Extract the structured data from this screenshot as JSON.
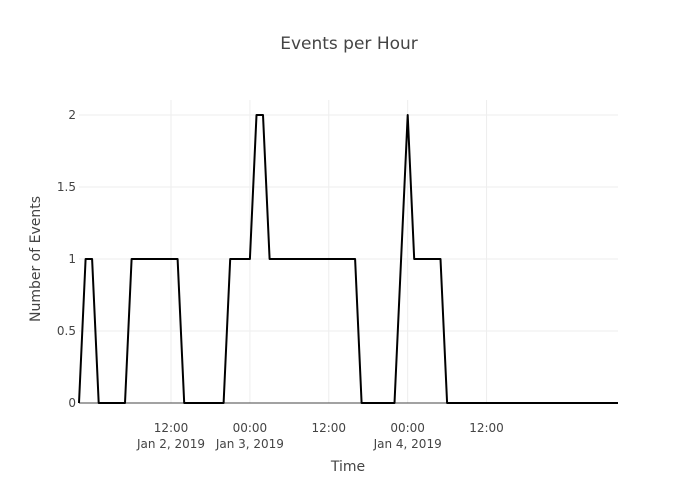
{
  "chart_data": {
    "type": "line",
    "title": "Events per Hour",
    "xlabel": "Time",
    "ylabel": "Number of Events",
    "xlim": [
      "2019-01-01 22:00",
      "2019-01-05 08:00"
    ],
    "ylim": [
      0,
      2
    ],
    "yticks": [
      0,
      0.5,
      1,
      1.5,
      2
    ],
    "ytick_labels": [
      "0",
      "0.5",
      "1",
      "1.5",
      "2"
    ],
    "xticks": [
      {
        "t": "2019-01-02 12:00",
        "label": "12:00",
        "sublabel": "Jan 2, 2019"
      },
      {
        "t": "2019-01-03 00:00",
        "label": "00:00",
        "sublabel": "Jan 3, 2019"
      },
      {
        "t": "2019-01-03 12:00",
        "label": "12:00",
        "sublabel": ""
      },
      {
        "t": "2019-01-04 00:00",
        "label": "00:00",
        "sublabel": "Jan 4, 2019"
      },
      {
        "t": "2019-01-04 12:00",
        "label": "12:00",
        "sublabel": ""
      }
    ],
    "grid": true,
    "line_color": "#000000",
    "series": [
      {
        "x": [
          "2019-01-01 22:00",
          "2019-01-01 23:00",
          "2019-01-02 00:00",
          "2019-01-02 01:00",
          "2019-01-02 02:00",
          "2019-01-02 03:00",
          "2019-01-02 04:00",
          "2019-01-02 05:00",
          "2019-01-02 06:00",
          "2019-01-02 07:00",
          "2019-01-02 08:00",
          "2019-01-02 09:00",
          "2019-01-02 10:00",
          "2019-01-02 11:00",
          "2019-01-02 12:00",
          "2019-01-02 13:00",
          "2019-01-02 14:00",
          "2019-01-02 15:00",
          "2019-01-02 16:00",
          "2019-01-02 17:00",
          "2019-01-02 18:00",
          "2019-01-02 19:00",
          "2019-01-02 20:00",
          "2019-01-02 21:00",
          "2019-01-02 22:00",
          "2019-01-02 23:00",
          "2019-01-03 00:00",
          "2019-01-03 01:00",
          "2019-01-03 02:00",
          "2019-01-03 03:00",
          "2019-01-03 04:00",
          "2019-01-03 05:00",
          "2019-01-03 06:00",
          "2019-01-03 07:00",
          "2019-01-03 08:00",
          "2019-01-03 09:00",
          "2019-01-03 10:00",
          "2019-01-03 11:00",
          "2019-01-03 12:00",
          "2019-01-03 13:00",
          "2019-01-03 14:00",
          "2019-01-03 15:00",
          "2019-01-03 16:00",
          "2019-01-03 17:00",
          "2019-01-03 18:00",
          "2019-01-03 19:00",
          "2019-01-03 20:00",
          "2019-01-03 21:00",
          "2019-01-03 22:00",
          "2019-01-03 23:00",
          "2019-01-04 00:00",
          "2019-01-04 01:00",
          "2019-01-04 02:00",
          "2019-01-04 03:00",
          "2019-01-04 04:00",
          "2019-01-04 05:00",
          "2019-01-04 06:00",
          "2019-01-04 07:00",
          "2019-01-04 08:00",
          "2019-01-04 09:00",
          "2019-01-04 10:00",
          "2019-01-04 11:00",
          "2019-01-04 12:00",
          "2019-01-04 13:00",
          "2019-01-04 14:00",
          "2019-01-04 15:00",
          "2019-01-04 16:00",
          "2019-01-04 17:00",
          "2019-01-04 18:00",
          "2019-01-04 19:00",
          "2019-01-04 20:00",
          "2019-01-04 21:00",
          "2019-01-04 22:00",
          "2019-01-04 23:00",
          "2019-01-05 00:00",
          "2019-01-05 01:00",
          "2019-01-05 02:00",
          "2019-01-05 03:00",
          "2019-01-05 04:00",
          "2019-01-05 05:00",
          "2019-01-05 06:00",
          "2019-01-05 07:00",
          "2019-01-05 08:00"
        ],
        "y": [
          0,
          1,
          1,
          0,
          0,
          0,
          0,
          0,
          1,
          1,
          1,
          1,
          1,
          1,
          1,
          1,
          0,
          0,
          0,
          0,
          0,
          0,
          0,
          1,
          1,
          1,
          1,
          2,
          2,
          1,
          1,
          1,
          1,
          1,
          1,
          1,
          1,
          1,
          1,
          1,
          1,
          1,
          1,
          0,
          0,
          0,
          0,
          0,
          0,
          1,
          2,
          1,
          1,
          1,
          1,
          1,
          0,
          0,
          0,
          0,
          0,
          0,
          0,
          0,
          0,
          0,
          0,
          0,
          0,
          0,
          0,
          0,
          0,
          0,
          0,
          0,
          0,
          0,
          0,
          0,
          0,
          0,
          0
        ]
      }
    ]
  }
}
